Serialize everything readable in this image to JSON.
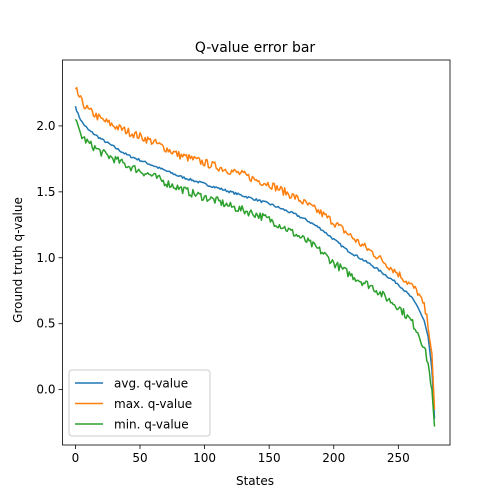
{
  "chart_data": {
    "type": "line",
    "title": "Q-value error bar",
    "xlabel": "States",
    "ylabel": "Ground truth q-value",
    "xlim": [
      -10,
      290
    ],
    "ylim": [
      -0.42,
      2.5
    ],
    "xticks": [
      0,
      50,
      100,
      150,
      200,
      250
    ],
    "yticks": [
      0.0,
      0.5,
      1.0,
      1.5,
      2.0
    ],
    "xtick_labels": [
      "0",
      "50",
      "100",
      "150",
      "200",
      "250"
    ],
    "ytick_labels": [
      "0.0",
      "0.5",
      "1.0",
      "1.5",
      "2.0"
    ],
    "grid": false,
    "legend_position": "lower-left",
    "n_points": 279,
    "series": [
      {
        "name": "avg. q-value",
        "color": "#1f77b4",
        "noise": 0.004,
        "x": [
          0,
          2,
          5,
          10,
          20,
          30,
          40,
          50,
          60,
          70,
          80,
          90,
          100,
          110,
          120,
          130,
          140,
          150,
          160,
          170,
          180,
          190,
          200,
          210,
          220,
          230,
          240,
          250,
          260,
          265,
          270,
          273,
          276,
          278
        ],
        "y": [
          2.15,
          2.09,
          2.03,
          1.97,
          1.9,
          1.84,
          1.78,
          1.74,
          1.7,
          1.66,
          1.62,
          1.59,
          1.56,
          1.53,
          1.5,
          1.47,
          1.44,
          1.41,
          1.37,
          1.33,
          1.28,
          1.22,
          1.14,
          1.06,
          1.0,
          0.94,
          0.87,
          0.8,
          0.7,
          0.63,
          0.52,
          0.4,
          0.15,
          -0.22
        ]
      },
      {
        "name": "max. q-value",
        "color": "#ff7f0e",
        "noise": 0.014,
        "x": [
          0,
          2,
          5,
          10,
          20,
          30,
          40,
          50,
          60,
          70,
          80,
          90,
          100,
          110,
          120,
          130,
          140,
          150,
          160,
          170,
          180,
          190,
          200,
          210,
          220,
          230,
          240,
          250,
          260,
          265,
          270,
          273,
          276,
          278
        ],
        "y": [
          2.28,
          2.24,
          2.18,
          2.12,
          2.05,
          2.0,
          1.96,
          1.92,
          1.88,
          1.83,
          1.78,
          1.75,
          1.72,
          1.69,
          1.66,
          1.63,
          1.59,
          1.56,
          1.51,
          1.46,
          1.4,
          1.34,
          1.27,
          1.19,
          1.11,
          1.04,
          0.96,
          0.88,
          0.79,
          0.74,
          0.63,
          0.5,
          0.27,
          -0.15
        ]
      },
      {
        "name": "min. q-value",
        "color": "#2ca02c",
        "noise": 0.014,
        "x": [
          0,
          2,
          5,
          10,
          20,
          30,
          40,
          50,
          60,
          70,
          80,
          90,
          100,
          110,
          120,
          130,
          140,
          150,
          160,
          170,
          180,
          190,
          200,
          210,
          220,
          230,
          240,
          250,
          260,
          265,
          270,
          273,
          276,
          278
        ],
        "y": [
          2.05,
          1.98,
          1.92,
          1.87,
          1.8,
          1.75,
          1.7,
          1.66,
          1.62,
          1.57,
          1.53,
          1.49,
          1.46,
          1.43,
          1.39,
          1.36,
          1.33,
          1.29,
          1.24,
          1.18,
          1.12,
          1.05,
          0.96,
          0.89,
          0.83,
          0.78,
          0.7,
          0.63,
          0.52,
          0.44,
          0.32,
          0.2,
          0.0,
          -0.28
        ]
      }
    ]
  }
}
